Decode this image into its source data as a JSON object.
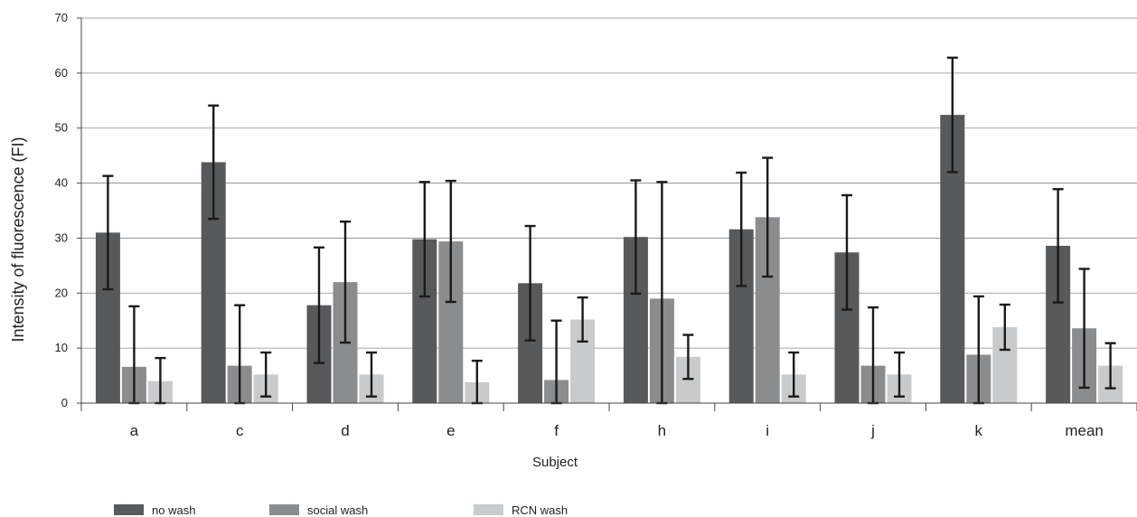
{
  "chart_data": {
    "type": "bar",
    "title": "",
    "xlabel": "Subject",
    "ylabel": "Intensity of fluorescence (FI)",
    "ylim": [
      0,
      70
    ],
    "yticks": [
      0,
      10,
      20,
      30,
      40,
      50,
      60,
      70
    ],
    "grid": true,
    "legend_position": "bottom-left",
    "categories": [
      "a",
      "c",
      "d",
      "e",
      "f",
      "h",
      "i",
      "j",
      "k",
      "mean"
    ],
    "series": [
      {
        "name": "no wash",
        "color": "#58595b",
        "values": [
          31.0,
          43.8,
          17.8,
          29.8,
          21.8,
          30.2,
          31.6,
          27.4,
          52.4,
          28.6
        ],
        "error": [
          10.3,
          10.3,
          10.5,
          10.4,
          10.4,
          10.3,
          10.3,
          10.4,
          10.4,
          10.3
        ]
      },
      {
        "name": "social wash",
        "color": "#8b8c8e",
        "values": [
          6.6,
          6.8,
          22.0,
          29.4,
          4.2,
          19.0,
          33.8,
          6.8,
          8.8,
          13.6
        ],
        "error": [
          11.0,
          11.0,
          11.0,
          11.0,
          10.8,
          21.2,
          10.8,
          10.6,
          10.6,
          10.8
        ]
      },
      {
        "name": "RCN wash",
        "color": "#c9cacb",
        "values": [
          4.0,
          5.2,
          5.2,
          3.8,
          15.2,
          8.4,
          5.2,
          5.2,
          13.8,
          6.8
        ],
        "error": [
          4.2,
          4.0,
          4.0,
          3.9,
          4.0,
          4.0,
          4.0,
          4.0,
          4.1,
          4.1
        ]
      }
    ]
  }
}
